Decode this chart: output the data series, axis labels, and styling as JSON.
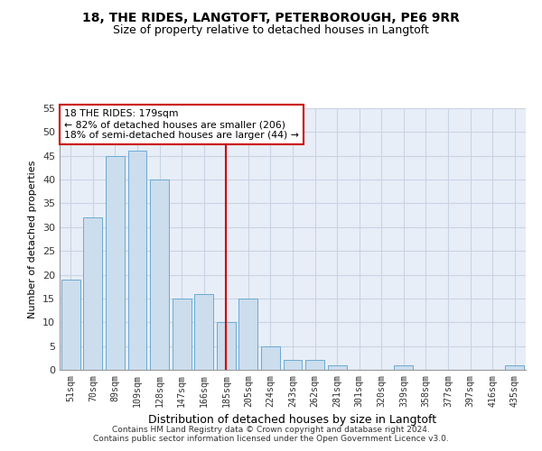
{
  "title1": "18, THE RIDES, LANGTOFT, PETERBOROUGH, PE6 9RR",
  "title2": "Size of property relative to detached houses in Langtoft",
  "xlabel": "Distribution of detached houses by size in Langtoft",
  "ylabel": "Number of detached properties",
  "categories": [
    "51sqm",
    "70sqm",
    "89sqm",
    "109sqm",
    "128sqm",
    "147sqm",
    "166sqm",
    "185sqm",
    "205sqm",
    "224sqm",
    "243sqm",
    "262sqm",
    "281sqm",
    "301sqm",
    "320sqm",
    "339sqm",
    "358sqm",
    "377sqm",
    "397sqm",
    "416sqm",
    "435sqm"
  ],
  "values": [
    19,
    32,
    45,
    46,
    40,
    15,
    16,
    10,
    15,
    5,
    2,
    2,
    1,
    0,
    0,
    1,
    0,
    0,
    0,
    0,
    1
  ],
  "bar_color": "#ccdded",
  "bar_edge_color": "#6aaad4",
  "vline_x_index": 7,
  "vline_color": "#cc0000",
  "annotation_line1": "18 THE RIDES: 179sqm",
  "annotation_line2": "← 82% of detached houses are smaller (206)",
  "annotation_line3": "18% of semi-detached houses are larger (44) →",
  "annotation_box_color": "#ffffff",
  "annotation_box_edge_color": "#cc0000",
  "ylim": [
    0,
    55
  ],
  "yticks": [
    0,
    5,
    10,
    15,
    20,
    25,
    30,
    35,
    40,
    45,
    50,
    55
  ],
  "grid_color": "#c8d4e4",
  "bg_color": "#e8eef8",
  "footer1": "Contains HM Land Registry data © Crown copyright and database right 2024.",
  "footer2": "Contains public sector information licensed under the Open Government Licence v3.0."
}
